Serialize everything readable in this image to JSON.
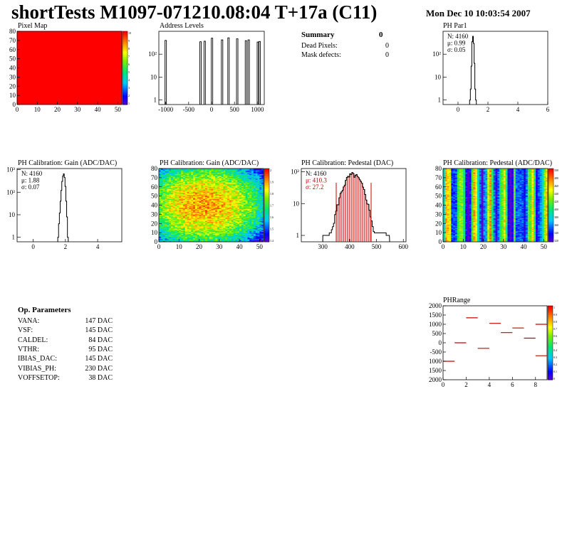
{
  "header": {
    "title": "shortTests M1097-071210.08:04 T+17a (C11)",
    "date": "Mon Dec 10 10:03:54 2007"
  },
  "summary": {
    "heading": "Summary",
    "heading_value": "0",
    "rows": [
      {
        "label": "Dead Pixels:",
        "value": "0"
      },
      {
        "label": "Mask defects:",
        "value": "0"
      }
    ]
  },
  "op_params": {
    "heading": "Op. Parameters",
    "rows": [
      {
        "label": "VANA:",
        "value": "147 DAC"
      },
      {
        "label": "VSF:",
        "value": "145 DAC"
      },
      {
        "label": "CALDEL:",
        "value": "84 DAC"
      },
      {
        "label": "VTHR:",
        "value": "95 DAC"
      },
      {
        "label": "IBIAS_DAC:",
        "value": "145 DAC"
      },
      {
        "label": "VIBIAS_PH:",
        "value": "230 DAC"
      },
      {
        "label": "VOFFSETOP:",
        "value": "38 DAC"
      }
    ]
  },
  "colors": {
    "hist_line": "#000000",
    "highlight": "#cc0000",
    "pixel_map_fill": "#ff0000"
  },
  "chart_data": [
    {
      "id": "pixel_map",
      "type": "heatmap",
      "title": "Pixel Map",
      "xlim": [
        0,
        52
      ],
      "ylim": [
        0,
        80
      ],
      "xticks": [
        "0",
        "10",
        "20",
        "30",
        "40",
        "50"
      ],
      "yticks": [
        "0",
        "10",
        "20",
        "30",
        "40",
        "50",
        "60",
        "70",
        "80"
      ],
      "zlim": [
        0,
        10
      ],
      "zticks": [
        "10",
        "9",
        "8",
        "7",
        "6",
        "5",
        "4",
        "3",
        "2",
        "1"
      ],
      "uniform_value": 10
    },
    {
      "id": "address_levels",
      "type": "bar",
      "title": "Address Levels",
      "log_y": true,
      "xlim": [
        -1150,
        1150
      ],
      "xticks": [
        "-1000",
        "-500",
        "0",
        "500",
        "1000"
      ],
      "yticks": [
        "1",
        "10",
        "10²"
      ],
      "peaks": [
        {
          "x": -1000,
          "y": 400
        },
        {
          "x": -240,
          "y": 350
        },
        {
          "x": -150,
          "y": 370
        },
        {
          "x": 10,
          "y": 500
        },
        {
          "x": 230,
          "y": 420
        },
        {
          "x": 370,
          "y": 520
        },
        {
          "x": 560,
          "y": 470
        },
        {
          "x": 750,
          "y": 390
        },
        {
          "x": 810,
          "y": 420
        },
        {
          "x": 1010,
          "y": 340
        },
        {
          "x": 1050,
          "y": 360
        }
      ]
    },
    {
      "id": "ph_par1",
      "type": "bar",
      "title": "PH Par1",
      "log_y": true,
      "xlim": [
        -1,
        6
      ],
      "xticks": [
        "0",
        "2",
        "4",
        "6"
      ],
      "yticks": [
        "1",
        "10",
        "10²"
      ],
      "stats": [
        "N: 4160",
        "μ: 0.99",
        "σ: 0.05"
      ],
      "hist": [
        [
          0.8,
          1
        ],
        [
          0.85,
          3
        ],
        [
          0.9,
          30
        ],
        [
          0.95,
          350
        ],
        [
          1.0,
          600
        ],
        [
          1.05,
          300
        ],
        [
          1.1,
          40
        ],
        [
          1.15,
          3
        ],
        [
          1.2,
          1
        ]
      ]
    },
    {
      "id": "gain_1d",
      "type": "bar",
      "title": "PH Calibration: Gain (ADC/DAC)",
      "log_y": true,
      "xlim": [
        -1,
        5.5
      ],
      "xticks": [
        "0",
        "2",
        "4"
      ],
      "yticks": [
        "1",
        "10",
        "10²",
        "10³"
      ],
      "stats": [
        "N: 4160",
        "μ: 1.88",
        "σ: 0.07"
      ],
      "hist": [
        [
          1.55,
          1
        ],
        [
          1.6,
          4
        ],
        [
          1.65,
          12
        ],
        [
          1.7,
          40
        ],
        [
          1.75,
          120
        ],
        [
          1.8,
          300
        ],
        [
          1.85,
          520
        ],
        [
          1.9,
          650
        ],
        [
          1.95,
          450
        ],
        [
          2.0,
          180
        ],
        [
          2.05,
          40
        ],
        [
          2.1,
          8
        ],
        [
          2.15,
          1
        ]
      ]
    },
    {
      "id": "gain_2d",
      "type": "heatmap",
      "title": "PH Calibration: Gain (ADC/DAC)",
      "xlim": [
        0,
        52
      ],
      "ylim": [
        0,
        80
      ],
      "xticks": [
        "0",
        "10",
        "20",
        "30",
        "40",
        "50"
      ],
      "yticks": [
        "0",
        "10",
        "20",
        "30",
        "40",
        "50",
        "60",
        "70",
        "80"
      ],
      "zlim": [
        1.4,
        2.05
      ],
      "zticks": [
        "2",
        "1.9",
        "1.8",
        "1.7",
        "1.6",
        "1.5",
        "1.4"
      ],
      "model": "center_high"
    },
    {
      "id": "pedestal_1d",
      "type": "bar",
      "title": "PH Calibration: Pedestal (DAC)",
      "log_y": true,
      "xlim": [
        220,
        610
      ],
      "xticks": [
        "300",
        "400",
        "500",
        "600"
      ],
      "yticks": [
        "1",
        "10",
        "10²"
      ],
      "stats": [
        "N: 4160",
        "μ: 410.3",
        "σ: 27.2"
      ],
      "mean": 410.3,
      "sigma": 27.2,
      "peak": 80,
      "cut_low": 350,
      "cut_high": 480
    },
    {
      "id": "pedestal_2d",
      "type": "heatmap",
      "title": "PH Calibration: Pedestal (ADC/DAC)",
      "xlim": [
        0,
        52
      ],
      "ylim": [
        0,
        80
      ],
      "xticks": [
        "0",
        "10",
        "20",
        "30",
        "40",
        "50"
      ],
      "yticks": [
        "0",
        "10",
        "20",
        "30",
        "40",
        "50",
        "60",
        "70",
        "80"
      ],
      "zlim": [
        320,
        500
      ],
      "zticks": [
        "500",
        "480",
        "460",
        "440",
        "420",
        "400",
        "380",
        "360",
        "340",
        "320"
      ],
      "model": "column_bands"
    },
    {
      "id": "ph_range",
      "type": "scatter",
      "title": "PHRange",
      "xlim": [
        0,
        9
      ],
      "ylim": [
        -2000,
        2000
      ],
      "xticks": [
        "0",
        "2",
        "4",
        "6",
        "8"
      ],
      "yticks": [
        "2000",
        "1500",
        "1000",
        "500",
        "0",
        "-500",
        "1000",
        "1500",
        "2000"
      ],
      "zticks": [
        "1",
        "0.9",
        "0.8",
        "0.7",
        "0.6",
        "0.5",
        "0.4",
        "0.3",
        "0.2",
        "0.1",
        "0"
      ],
      "segments": [
        {
          "x": 0,
          "y": -1000
        },
        {
          "x": 1,
          "y": 0
        },
        {
          "x": 2,
          "y": 1350
        },
        {
          "x": 3,
          "y": -300
        },
        {
          "x": 4,
          "y": 1050
        },
        {
          "x": 5,
          "y": 550
        },
        {
          "x": 6,
          "y": 800
        },
        {
          "x": 7,
          "y": 250
        },
        {
          "x": 8,
          "y": 1000
        },
        {
          "x": 8,
          "y": -700
        }
      ]
    }
  ]
}
